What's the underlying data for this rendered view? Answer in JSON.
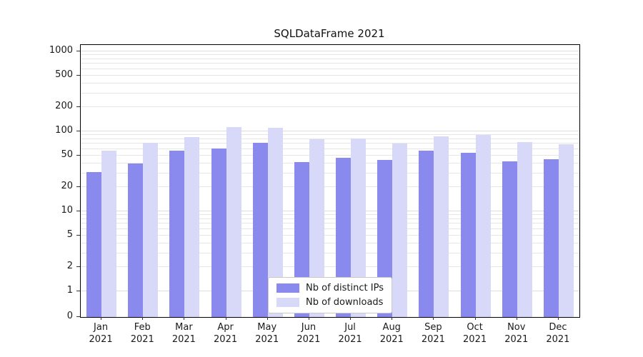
{
  "chart_data": {
    "type": "bar",
    "title": "SQLDataFrame 2021",
    "categories": [
      "Jan 2021",
      "Feb 2021",
      "Mar 2021",
      "Apr 2021",
      "May 2021",
      "Jun 2021",
      "Jul 2021",
      "Aug 2021",
      "Sep 2021",
      "Oct 2021",
      "Nov 2021",
      "Dec 2021"
    ],
    "series": [
      {
        "name": "Nb of distinct IPs",
        "color": "#8a8aee",
        "values": [
          31,
          40,
          57,
          61,
          72,
          41,
          47,
          44,
          58,
          54,
          42,
          45
        ]
      },
      {
        "name": "Nb of downloads",
        "color": "#d8d8f8",
        "values": [
          58,
          72,
          85,
          113,
          110,
          79,
          82,
          71,
          87,
          90,
          73,
          69
        ]
      }
    ],
    "yscale": "symlog",
    "yticks": [
      0,
      1,
      2,
      5,
      10,
      20,
      50,
      100,
      200,
      500,
      1000
    ],
    "ylim": [
      0,
      1200
    ],
    "grid": true,
    "legend_position": "lower center",
    "xlabel": "",
    "ylabel": ""
  }
}
